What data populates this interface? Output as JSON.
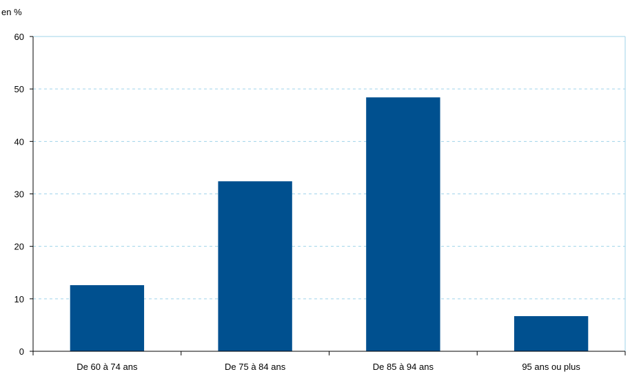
{
  "chart_data": {
    "type": "bar",
    "title": "",
    "ylabel": "en %",
    "xlabel": "",
    "categories": [
      "De 60 à 74 ans",
      "De 75 à 84 ans",
      "De 85 à 94 ans",
      "95 ans ou plus"
    ],
    "values": [
      12.6,
      32.4,
      48.4,
      6.7
    ],
    "ylim": [
      0,
      60
    ],
    "yticks": [
      "0",
      "10",
      "20",
      "30",
      "40",
      "50",
      "60"
    ],
    "grid": true,
    "legend": "none",
    "colors": {
      "bar": "#00508F",
      "grid": "#9FD3EA",
      "axis": "#000000",
      "frame": "#9FD3EA"
    }
  }
}
